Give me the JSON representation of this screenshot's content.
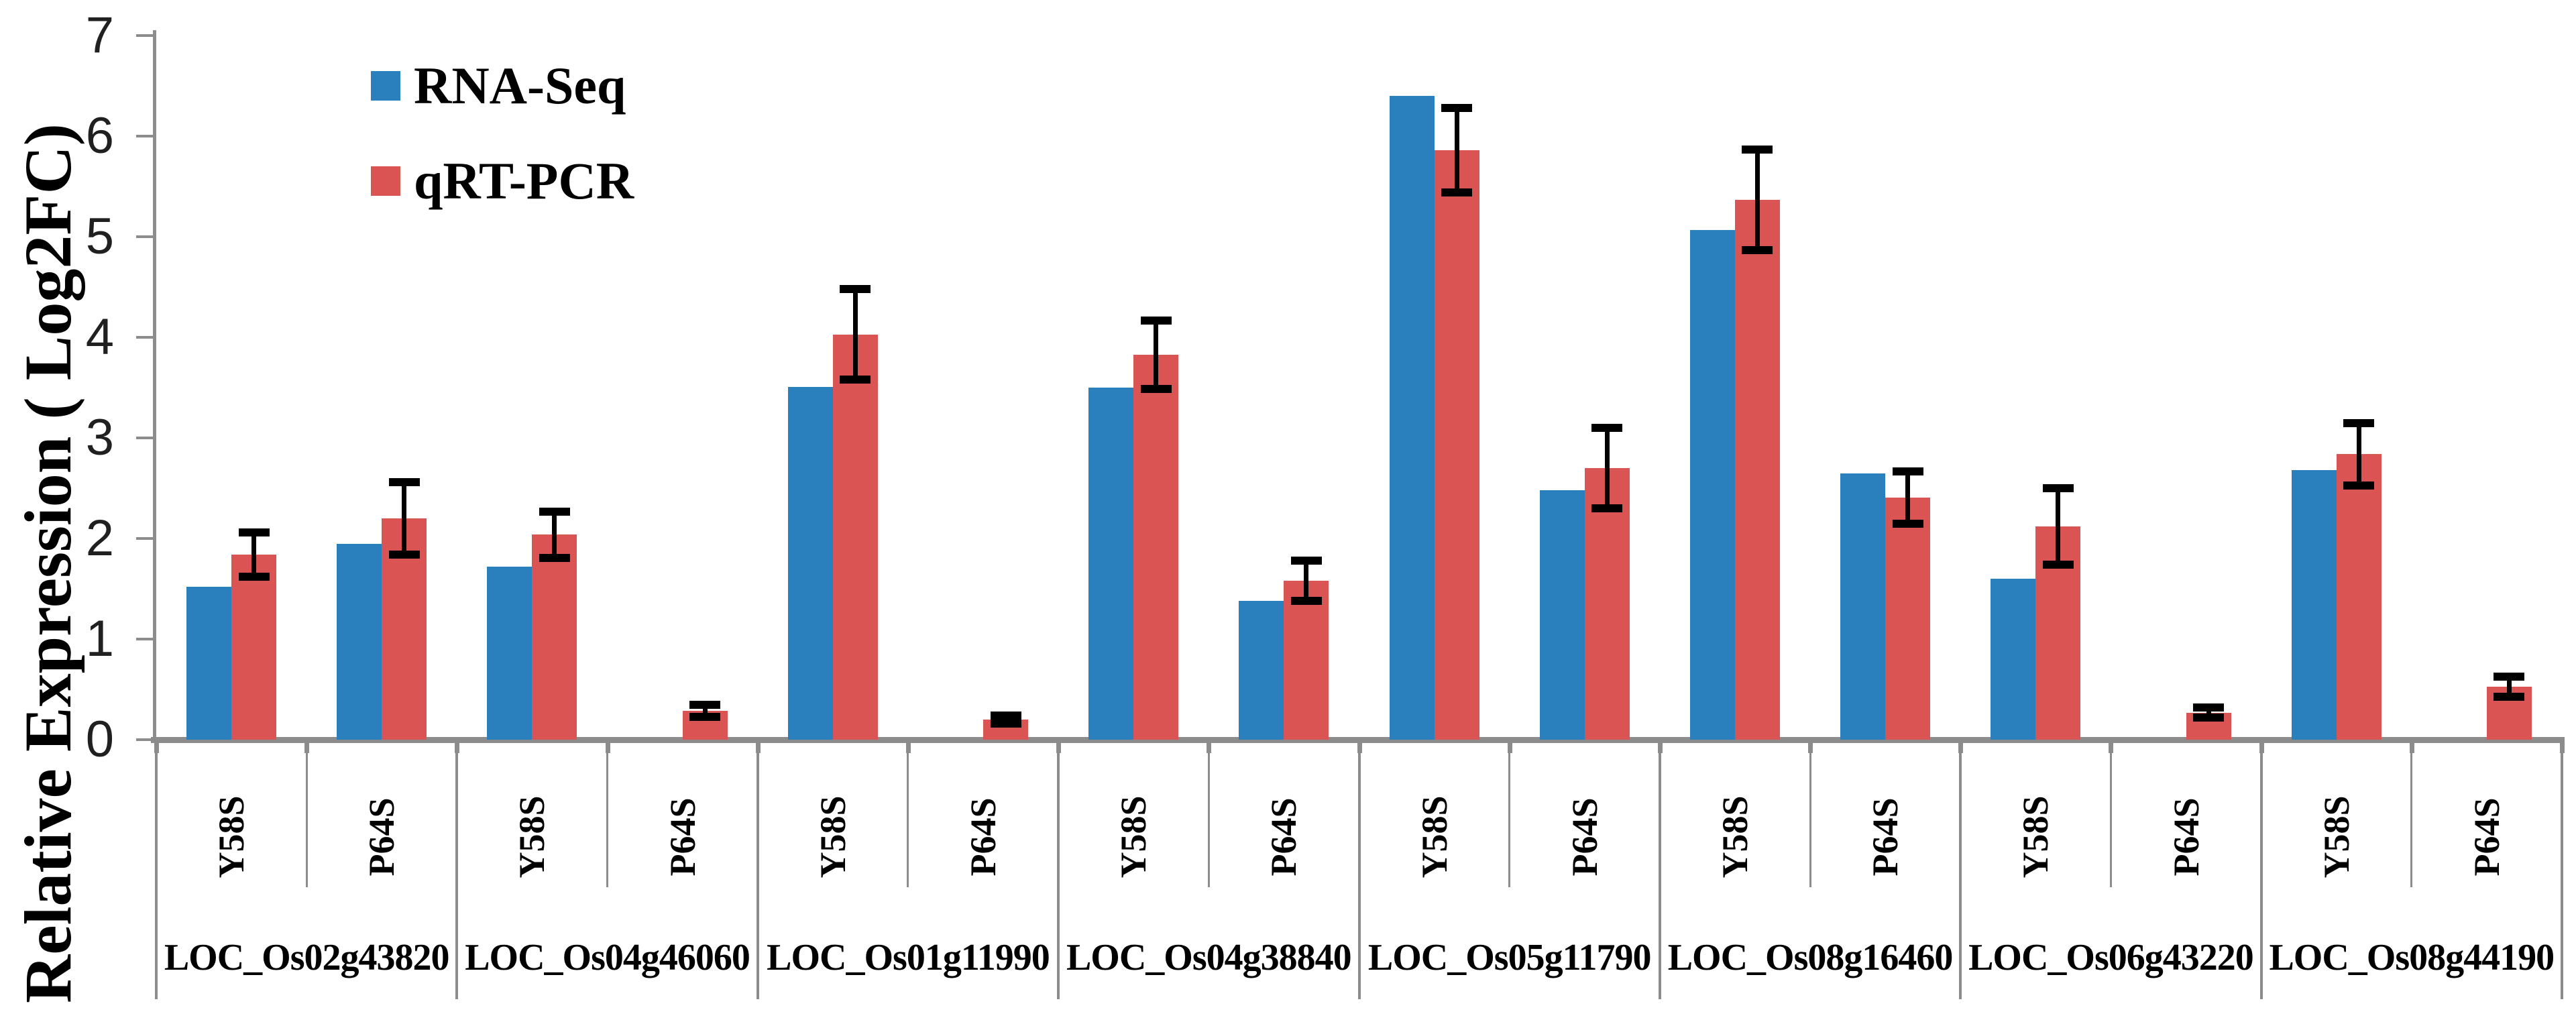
{
  "chart_data": {
    "type": "bar",
    "title": "",
    "xlabel": "",
    "ylabel": "Relative Expression ( Log2FC)",
    "ylim": [
      0,
      7
    ],
    "yticks": [
      0,
      1,
      2,
      3,
      4,
      5,
      6,
      7
    ],
    "grid": "off",
    "legend_position": "upper-left-inside",
    "series": [
      {
        "name": "RNA-Seq",
        "color": "#2A80BD"
      },
      {
        "name": "qRT-PCR",
        "color": "#D95452"
      }
    ],
    "error_bars": "on qRT-PCR bars only, black caps",
    "condition_levels": [
      "Y58S",
      "P64S"
    ],
    "groups": [
      {
        "gene": "LOC_Os02g43820",
        "conditions": [
          {
            "label": "Y58S",
            "rna_seq": 1.52,
            "qrt_pcr": 1.84,
            "qrt_err": 0.22
          },
          {
            "label": "P64S",
            "rna_seq": 1.95,
            "qrt_pcr": 2.2,
            "qrt_err": 0.36
          }
        ]
      },
      {
        "gene": "LOC_Os04g46060",
        "conditions": [
          {
            "label": "Y58S",
            "rna_seq": 1.72,
            "qrt_pcr": 2.04,
            "qrt_err": 0.23
          },
          {
            "label": "P64S",
            "rna_seq": 0,
            "qrt_pcr": 0.29,
            "qrt_err": 0.06
          }
        ]
      },
      {
        "gene": "LOC_Os01g11990",
        "conditions": [
          {
            "label": "Y58S",
            "rna_seq": 3.51,
            "qrt_pcr": 4.03,
            "qrt_err": 0.45
          },
          {
            "label": "P64S",
            "rna_seq": 0,
            "qrt_pcr": 0.2,
            "qrt_err": 0.04
          }
        ]
      },
      {
        "gene": "LOC_Os04g38840",
        "conditions": [
          {
            "label": "Y58S",
            "rna_seq": 3.5,
            "qrt_pcr": 3.83,
            "qrt_err": 0.34
          },
          {
            "label": "P64S",
            "rna_seq": 1.38,
            "qrt_pcr": 1.58,
            "qrt_err": 0.2
          }
        ]
      },
      {
        "gene": "LOC_Os05g11790",
        "conditions": [
          {
            "label": "Y58S",
            "rna_seq": 6.4,
            "qrt_pcr": 5.86,
            "qrt_err": 0.42
          },
          {
            "label": "P64S",
            "rna_seq": 2.48,
            "qrt_pcr": 2.7,
            "qrt_err": 0.4
          }
        ]
      },
      {
        "gene": "LOC_Os08g16460",
        "conditions": [
          {
            "label": "Y58S",
            "rna_seq": 5.07,
            "qrt_pcr": 5.37,
            "qrt_err": 0.5
          },
          {
            "label": "P64S",
            "rna_seq": 2.65,
            "qrt_pcr": 2.41,
            "qrt_err": 0.26
          }
        ]
      },
      {
        "gene": "LOC_Os06g43220",
        "conditions": [
          {
            "label": "Y58S",
            "rna_seq": 1.6,
            "qrt_pcr": 2.12,
            "qrt_err": 0.38
          },
          {
            "label": "P64S",
            "rna_seq": 0,
            "qrt_pcr": 0.27,
            "qrt_err": 0.05
          }
        ]
      },
      {
        "gene": "LOC_Os08g44190",
        "conditions": [
          {
            "label": "Y58S",
            "rna_seq": 2.68,
            "qrt_pcr": 2.84,
            "qrt_err": 0.31
          },
          {
            "label": "P64S",
            "rna_seq": 0,
            "qrt_pcr": 0.53,
            "qrt_err": 0.1
          }
        ]
      }
    ]
  },
  "colors": {
    "rna_seq_blue": "#2A80BD",
    "qrt_pcr_red": "#D95452",
    "axis_gray": "#8C8C8C",
    "error_black": "#000000",
    "text_black": "#000000"
  }
}
